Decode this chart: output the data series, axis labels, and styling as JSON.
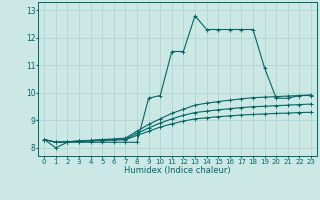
{
  "title": "",
  "xlabel": "Humidex (Indice chaleur)",
  "ylabel": "",
  "background_color": "#cce8e5",
  "grid_color": "#aed0cc",
  "line_color": "#006666",
  "xlim": [
    -0.5,
    23.5
  ],
  "ylim": [
    7.7,
    13.3
  ],
  "xticks": [
    0,
    1,
    2,
    3,
    4,
    5,
    6,
    7,
    8,
    9,
    10,
    11,
    12,
    13,
    14,
    15,
    16,
    17,
    18,
    19,
    20,
    21,
    22,
    23
  ],
  "yticks": [
    8,
    9,
    10,
    11,
    12,
    13
  ],
  "series": [
    [
      8.3,
      8.0,
      8.2,
      8.2,
      8.2,
      8.2,
      8.2,
      8.2,
      8.2,
      9.8,
      9.9,
      11.5,
      11.5,
      12.8,
      12.3,
      12.3,
      12.3,
      12.3,
      12.3,
      10.9,
      9.8,
      9.8,
      9.9,
      9.9
    ],
    [
      8.3,
      8.2,
      8.22,
      8.25,
      8.27,
      8.3,
      8.32,
      8.35,
      8.6,
      8.85,
      9.05,
      9.25,
      9.4,
      9.55,
      9.62,
      9.68,
      9.73,
      9.78,
      9.82,
      9.84,
      9.86,
      9.88,
      9.9,
      9.92
    ],
    [
      8.3,
      8.2,
      8.22,
      8.24,
      8.26,
      8.28,
      8.3,
      8.32,
      8.52,
      8.72,
      8.9,
      9.05,
      9.18,
      9.28,
      9.33,
      9.38,
      9.42,
      9.46,
      9.49,
      9.51,
      9.53,
      9.55,
      9.57,
      9.59
    ],
    [
      8.3,
      8.2,
      8.22,
      8.23,
      8.25,
      8.26,
      8.28,
      8.29,
      8.45,
      8.6,
      8.75,
      8.87,
      8.97,
      9.05,
      9.09,
      9.13,
      9.16,
      9.19,
      9.21,
      9.23,
      9.25,
      9.26,
      9.28,
      9.29
    ]
  ]
}
